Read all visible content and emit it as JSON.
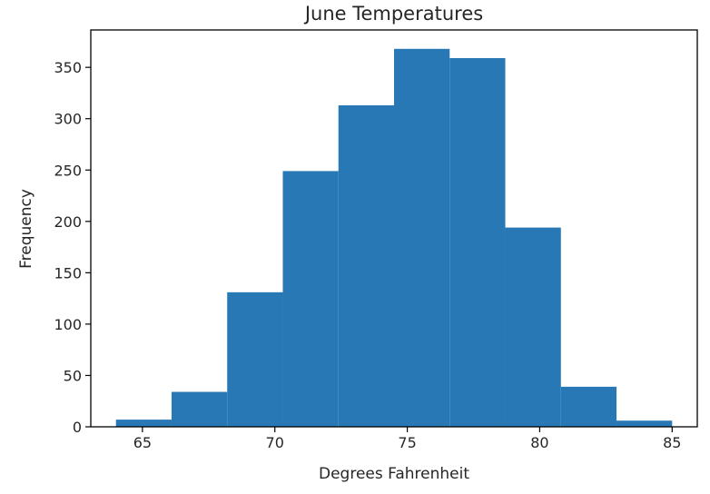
{
  "chart_data": {
    "type": "bar",
    "histogram": true,
    "title": "June Temperatures",
    "xlabel": "Degrees Fahrenheit",
    "ylabel": "Frequency",
    "bin_edges": [
      64,
      66.1,
      68.2,
      70.3,
      72.4,
      74.5,
      76.6,
      78.7,
      80.8,
      82.9,
      85
    ],
    "values": [
      7,
      34,
      131,
      249,
      313,
      368,
      359,
      194,
      39,
      6
    ],
    "xticks": [
      65,
      70,
      75,
      80,
      85
    ],
    "yticks": [
      0,
      50,
      100,
      150,
      200,
      250,
      300,
      350
    ],
    "xlim": [
      63.05,
      85.95
    ],
    "ylim": [
      0,
      386.4
    ],
    "grid": false,
    "bar_color": "#2878b5"
  }
}
